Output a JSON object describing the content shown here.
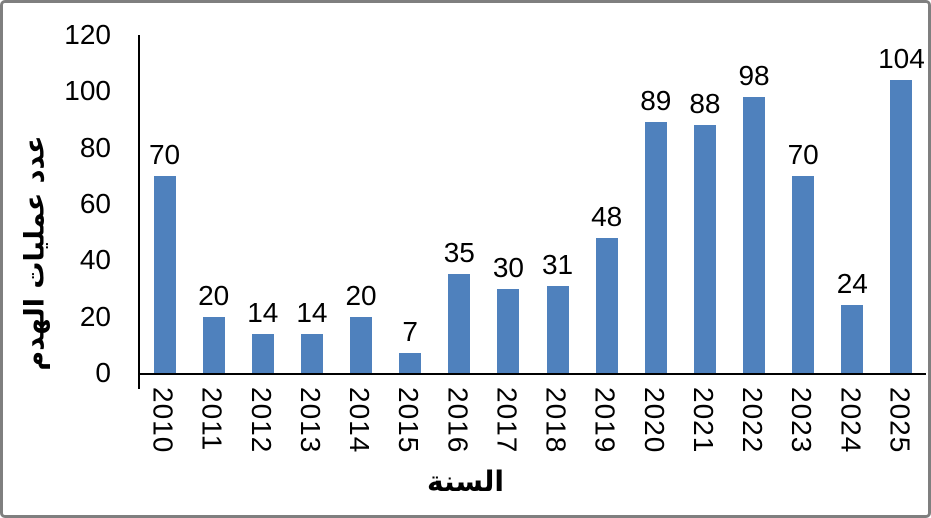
{
  "chart_data": {
    "type": "bar",
    "categories": [
      "2010",
      "2011",
      "2012",
      "2013",
      "2014",
      "2015",
      "2016",
      "2017",
      "2018",
      "2019",
      "2020",
      "2021",
      "2022",
      "2023",
      "2024",
      "2025"
    ],
    "values": [
      70,
      20,
      14,
      14,
      20,
      7,
      35,
      30,
      31,
      48,
      89,
      88,
      98,
      70,
      24,
      104
    ],
    "title": "",
    "xlabel": "السنة",
    "ylabel": "عدد عمليات الهدم",
    "ylim": [
      0,
      120
    ],
    "yticks": [
      0,
      20,
      40,
      60,
      80,
      100,
      120
    ],
    "data_labels_shown": true,
    "grid": false,
    "legend": "none",
    "bar_color": "#4f81bd",
    "axis_color": "#000000",
    "frame_border_color": "#7f7f7f",
    "background_color": "#ffffff"
  }
}
